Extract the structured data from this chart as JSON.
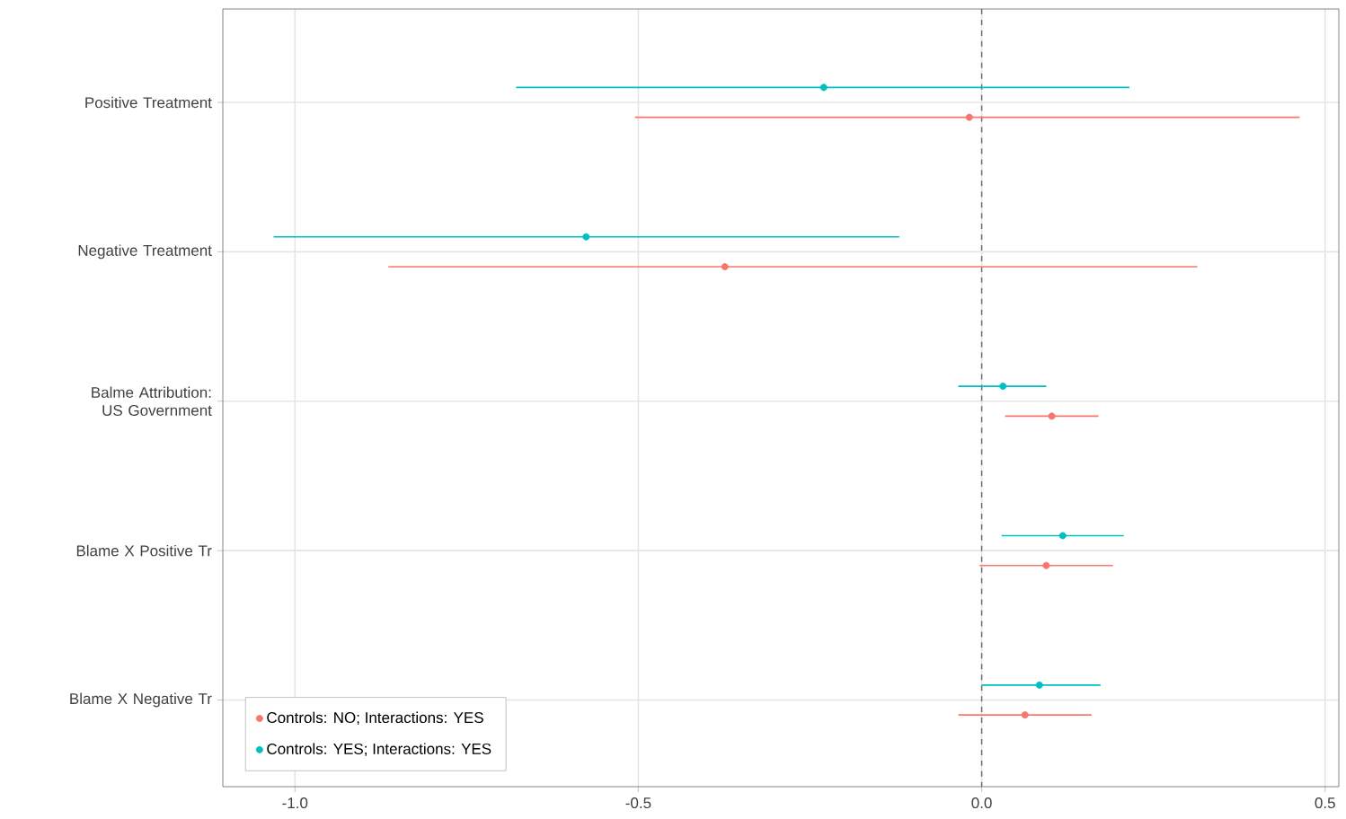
{
  "chart_data": {
    "type": "scatter",
    "orientation": "horizontal",
    "categories": [
      "Positive Treatment",
      "Negative Treatment",
      "Balme Attribution: US Government",
      "Blame X Positive Tr",
      "Blame X Negative Tr"
    ],
    "series": [
      {
        "name": "Controls: NO; Interactions: YES",
        "color": "#f8766d",
        "values": [
          -0.018,
          -0.374,
          0.102,
          0.094,
          0.063
        ],
        "errors": [
          [
            -0.505,
            0.463
          ],
          [
            -0.864,
            0.314
          ],
          [
            0.034,
            0.17
          ],
          [
            -0.003,
            0.191
          ],
          [
            -0.034,
            0.16
          ]
        ]
      },
      {
        "name": "Controls: YES; Interactions: YES",
        "color": "#00bfc4",
        "values": [
          -0.23,
          -0.576,
          0.031,
          0.118,
          0.084
        ],
        "errors": [
          [
            -0.678,
            0.215
          ],
          [
            -1.031,
            -0.12
          ],
          [
            -0.034,
            0.094
          ],
          [
            0.029,
            0.207
          ],
          [
            0.0,
            0.173
          ]
        ]
      }
    ],
    "xlim": [
      -1.105,
      0.52
    ],
    "xticks": [
      {
        "value": -1.0,
        "label": "-1.0"
      },
      {
        "value": -0.5,
        "label": "-0.5"
      },
      {
        "value": 0.0,
        "label": "0.0"
      },
      {
        "value": 0.5,
        "label": "0.5"
      }
    ],
    "ref_lines": [
      {
        "axis": "x",
        "value": 0,
        "color": "#666666",
        "line_style": "dashed"
      }
    ],
    "grid": true,
    "legend": "bottom left"
  }
}
